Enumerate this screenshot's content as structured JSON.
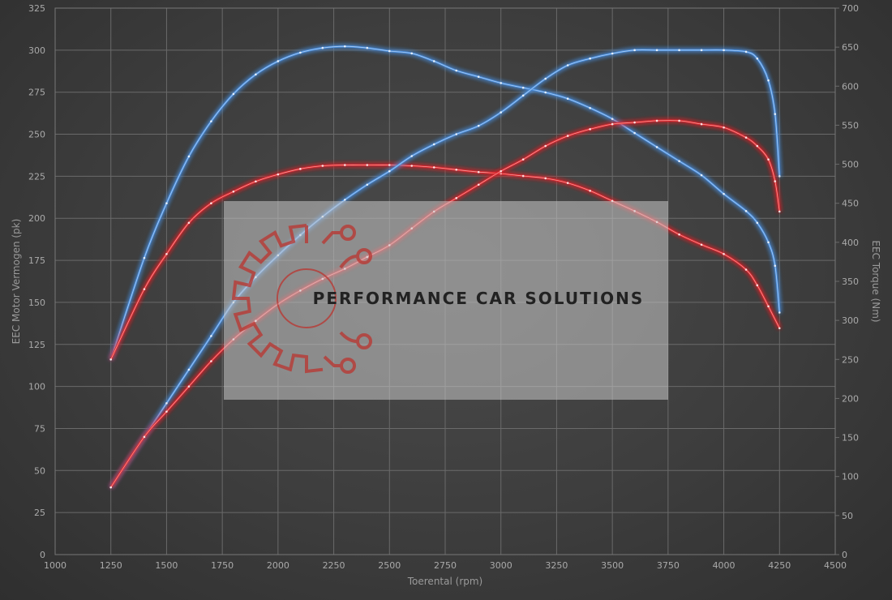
{
  "chart_data": {
    "type": "line",
    "title": "",
    "xlabel": "Toerental (rpm)",
    "ylabel_left": "EEC Motor Vermogen (pk)",
    "ylabel_right": "EEC Torque (Nm)",
    "xlim": [
      1000,
      4500
    ],
    "ylim_left": [
      0,
      325
    ],
    "ylim_right": [
      0,
      700
    ],
    "x_ticks": [
      "1000",
      "1250",
      "1500",
      "1750",
      "2000",
      "2250",
      "2500",
      "2750",
      "3000",
      "3250",
      "3500",
      "3750",
      "4000",
      "4250",
      "4500"
    ],
    "y_left_ticks": [
      "0",
      "25",
      "50",
      "75",
      "100",
      "125",
      "150",
      "175",
      "200",
      "225",
      "250",
      "275",
      "300",
      "325"
    ],
    "y_right_ticks": [
      "0",
      "50",
      "100",
      "150",
      "200",
      "250",
      "300",
      "350",
      "400",
      "450",
      "500",
      "550",
      "600",
      "650",
      "700"
    ],
    "grid": true,
    "series": [
      {
        "axis": "right",
        "color": "#4a8fe0",
        "points": [
          [
            1250,
            250
          ],
          [
            1400,
            380
          ],
          [
            1500,
            450
          ],
          [
            1600,
            510
          ],
          [
            1700,
            555
          ],
          [
            1800,
            590
          ],
          [
            1900,
            615
          ],
          [
            2000,
            632
          ],
          [
            2100,
            643
          ],
          [
            2200,
            649
          ],
          [
            2300,
            651
          ],
          [
            2400,
            649
          ],
          [
            2500,
            645
          ],
          [
            2600,
            642
          ],
          [
            2700,
            632
          ],
          [
            2800,
            620
          ],
          [
            2900,
            612
          ],
          [
            3000,
            604
          ],
          [
            3100,
            598
          ],
          [
            3200,
            592
          ],
          [
            3300,
            584
          ],
          [
            3400,
            572
          ],
          [
            3500,
            558
          ],
          [
            3600,
            540
          ],
          [
            3700,
            522
          ],
          [
            3800,
            504
          ],
          [
            3900,
            486
          ],
          [
            4000,
            462
          ],
          [
            4100,
            440
          ],
          [
            4150,
            425
          ],
          [
            4200,
            400
          ],
          [
            4230,
            370
          ],
          [
            4250,
            310
          ]
        ]
      },
      {
        "axis": "right",
        "color": "#e0282c",
        "points": [
          [
            1250,
            250
          ],
          [
            1400,
            340
          ],
          [
            1500,
            385
          ],
          [
            1600,
            425
          ],
          [
            1700,
            450
          ],
          [
            1800,
            465
          ],
          [
            1900,
            478
          ],
          [
            2000,
            487
          ],
          [
            2100,
            494
          ],
          [
            2200,
            498
          ],
          [
            2300,
            499
          ],
          [
            2400,
            499
          ],
          [
            2500,
            499
          ],
          [
            2600,
            498
          ],
          [
            2700,
            496
          ],
          [
            2800,
            493
          ],
          [
            2900,
            490
          ],
          [
            3000,
            488
          ],
          [
            3100,
            485
          ],
          [
            3200,
            482
          ],
          [
            3300,
            476
          ],
          [
            3400,
            466
          ],
          [
            3500,
            453
          ],
          [
            3600,
            440
          ],
          [
            3700,
            426
          ],
          [
            3800,
            410
          ],
          [
            3900,
            397
          ],
          [
            4000,
            385
          ],
          [
            4100,
            365
          ],
          [
            4150,
            345
          ],
          [
            4200,
            318
          ],
          [
            4250,
            290
          ]
        ]
      },
      {
        "axis": "left",
        "color": "#4a8fe0",
        "points": [
          [
            1250,
            40
          ],
          [
            1400,
            70
          ],
          [
            1500,
            90
          ],
          [
            1600,
            110
          ],
          [
            1700,
            130
          ],
          [
            1800,
            150
          ],
          [
            1900,
            165
          ],
          [
            2000,
            178
          ],
          [
            2100,
            190
          ],
          [
            2200,
            201
          ],
          [
            2300,
            211
          ],
          [
            2400,
            220
          ],
          [
            2500,
            228
          ],
          [
            2600,
            237
          ],
          [
            2700,
            244
          ],
          [
            2800,
            250
          ],
          [
            2900,
            255
          ],
          [
            3000,
            263
          ],
          [
            3100,
            273
          ],
          [
            3200,
            283
          ],
          [
            3300,
            291
          ],
          [
            3400,
            295
          ],
          [
            3500,
            298
          ],
          [
            3600,
            300
          ],
          [
            3700,
            300
          ],
          [
            3800,
            300
          ],
          [
            3900,
            300
          ],
          [
            4000,
            300
          ],
          [
            4100,
            299
          ],
          [
            4150,
            295
          ],
          [
            4200,
            282
          ],
          [
            4230,
            262
          ],
          [
            4250,
            225
          ]
        ]
      },
      {
        "axis": "left",
        "color": "#e0282c",
        "points": [
          [
            1250,
            40
          ],
          [
            1400,
            70
          ],
          [
            1500,
            85
          ],
          [
            1600,
            100
          ],
          [
            1700,
            115
          ],
          [
            1800,
            128
          ],
          [
            1900,
            139
          ],
          [
            2000,
            149
          ],
          [
            2100,
            157
          ],
          [
            2200,
            164
          ],
          [
            2300,
            170
          ],
          [
            2400,
            177
          ],
          [
            2500,
            184
          ],
          [
            2600,
            194
          ],
          [
            2700,
            204
          ],
          [
            2800,
            212
          ],
          [
            2900,
            220
          ],
          [
            3000,
            228
          ],
          [
            3100,
            235
          ],
          [
            3200,
            243
          ],
          [
            3300,
            249
          ],
          [
            3400,
            253
          ],
          [
            3500,
            256
          ],
          [
            3600,
            257
          ],
          [
            3700,
            258
          ],
          [
            3800,
            258
          ],
          [
            3900,
            256
          ],
          [
            4000,
            254
          ],
          [
            4100,
            248
          ],
          [
            4150,
            243
          ],
          [
            4200,
            235
          ],
          [
            4230,
            222
          ],
          [
            4250,
            204
          ]
        ]
      }
    ]
  },
  "watermark": {
    "text": "PERFORMANCE CAR SOLUTIONS",
    "icon": "gear-circuit-icon",
    "box_color": "#c8c8c8",
    "icon_color": "#b83a35"
  }
}
